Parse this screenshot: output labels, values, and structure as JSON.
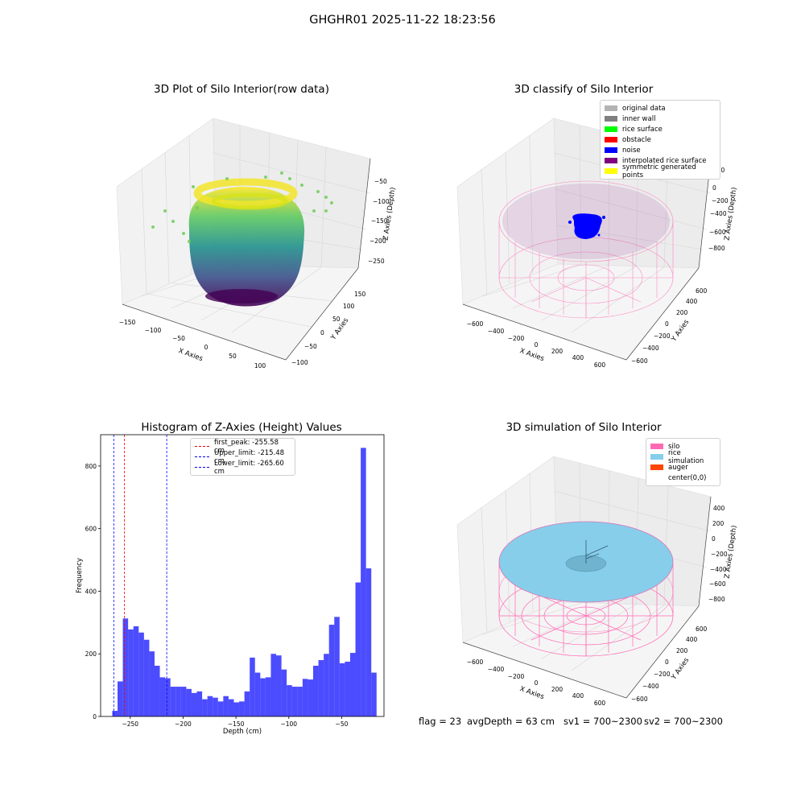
{
  "suptitle": "GHGHR01 2025-11-22 18:23:56",
  "titles": {
    "tl": "3D Plot of Silo Interior(row data)",
    "tr": "3D classify of Silo Interior",
    "bl": "Histogram of Z-Axies (Height) Values",
    "br": "3D simulation of Silo Interior"
  },
  "axes3d": {
    "tl": {
      "xlabel": "X Axies",
      "ylabel": "Y Axies",
      "zlabel": "Z Axies (Depth)",
      "xticks": [
        "−150",
        "−100",
        "−50",
        "0",
        "50",
        "100"
      ],
      "yticks": [
        "−100",
        "−50",
        "0",
        "50",
        "100",
        "150"
      ],
      "zticks": [
        "−50",
        "−100",
        "−150",
        "−200",
        "−250"
      ]
    },
    "tr": {
      "xlabel": "X Axies",
      "ylabel": "Y Axies",
      "zlabel": "Z Axies (Depth)",
      "xticks": [
        "−600",
        "−400",
        "−200",
        "0",
        "200",
        "400",
        "600"
      ],
      "yticks": [
        "−600",
        "−400",
        "−200",
        "0",
        "200",
        "400",
        "600"
      ],
      "zticks": [
        "200",
        "0",
        "−200",
        "−400",
        "−600",
        "−800"
      ]
    },
    "br": {
      "xlabel": "X Axies",
      "ylabel": "Y Axies",
      "zlabel": "Z Axies (Depth)",
      "xticks": [
        "−600",
        "−400",
        "−200",
        "0",
        "200",
        "400",
        "600"
      ],
      "yticks": [
        "−600",
        "−400",
        "−200",
        "0",
        "200",
        "400",
        "600"
      ],
      "zticks": [
        "400",
        "200",
        "0",
        "−200",
        "−400",
        "−600",
        "−800"
      ]
    }
  },
  "legend_tr": [
    {
      "label": "original data",
      "color": "#b3b3b3"
    },
    {
      "label": "inner wall",
      "color": "#808080"
    },
    {
      "label": "rice surface",
      "color": "#00ff00"
    },
    {
      "label": "obstacle",
      "color": "#ff0000"
    },
    {
      "label": "noise",
      "color": "#0000ff"
    },
    {
      "label": "interpolated rice surface",
      "color": "#800080"
    },
    {
      "label": "symmetric generated points",
      "color": "#ffff00"
    }
  ],
  "legend_br": [
    {
      "label": "silo",
      "color": "#ff69b4"
    },
    {
      "label": "rice simulation",
      "color": "#87ceeb"
    },
    {
      "label": "auger",
      "color": "#ff4500"
    },
    {
      "label": "center(0,0)",
      "color": "#ffffff"
    }
  ],
  "legend_hist": [
    {
      "label": "first_peak: -255.58 cm",
      "color": "#ff0000"
    },
    {
      "label": "Upper_limit: -215.48 cm",
      "color": "#0000ff"
    },
    {
      "label": "Lower_limit: -265.60 cm",
      "color": "#0000ff"
    }
  ],
  "status": {
    "flag": "flag = 23",
    "avg": "avgDepth = 63 cm",
    "sv1": "sv1 = 700~2300",
    "sv2": "sv2 = 700~2300"
  },
  "chart_data": [
    {
      "type": "scatter",
      "title": "3D Plot of Silo Interior(row data)",
      "xlabel": "X Axies",
      "ylabel": "Y Axies",
      "zlabel": "Z Axies (Depth)",
      "xlim": [
        -170,
        120
      ],
      "ylim": [
        -110,
        170
      ],
      "zlim": [
        -300,
        -30
      ],
      "colormap": "viridis"
    },
    {
      "type": "scatter",
      "title": "3D classify of Silo Interior",
      "xlabel": "X Axies",
      "ylabel": "Y Axies",
      "zlabel": "Z Axies (Depth)",
      "xlim": [
        -700,
        700
      ],
      "ylim": [
        -700,
        700
      ],
      "zlim": [
        -900,
        300
      ],
      "series": [
        {
          "name": "original data"
        },
        {
          "name": "inner wall"
        },
        {
          "name": "rice surface"
        },
        {
          "name": "obstacle"
        },
        {
          "name": "noise"
        },
        {
          "name": "interpolated rice surface"
        },
        {
          "name": "symmetric generated points"
        }
      ]
    },
    {
      "type": "bar",
      "title": "Histogram of Z-Axies (Height) Values",
      "xlabel": "Depth (cm)",
      "ylabel": "Frequency",
      "xlim": [
        -278,
        -10
      ],
      "ylim": [
        0,
        900
      ],
      "xticks": [
        -250,
        -200,
        -150,
        -100,
        -50
      ],
      "yticks": [
        0,
        200,
        400,
        600,
        800
      ],
      "bin_start": -267,
      "bin_width": 5,
      "values": [
        18,
        112,
        313,
        278,
        288,
        268,
        245,
        208,
        162,
        125,
        122,
        95,
        95,
        95,
        88,
        75,
        80,
        55,
        65,
        60,
        48,
        65,
        55,
        45,
        48,
        80,
        188,
        140,
        122,
        125,
        200,
        195,
        150,
        100,
        95,
        95,
        120,
        118,
        162,
        180,
        200,
        293,
        318,
        170,
        175,
        203,
        428,
        858,
        473,
        140
      ],
      "vlines": [
        {
          "label": "first_peak: -255.58 cm",
          "x": -255.58,
          "color": "#ff0000"
        },
        {
          "label": "Upper_limit: -215.48 cm",
          "x": -215.48,
          "color": "#0000ff"
        },
        {
          "label": "Lower_limit: -265.60 cm",
          "x": -265.6,
          "color": "#0000ff"
        }
      ]
    },
    {
      "type": "scatter",
      "title": "3D simulation of Silo Interior",
      "xlabel": "X Axies",
      "ylabel": "Y Axies",
      "zlabel": "Z Axies (Depth)",
      "xlim": [
        -700,
        700
      ],
      "ylim": [
        -700,
        700
      ],
      "zlim": [
        -900,
        500
      ],
      "series": [
        {
          "name": "silo"
        },
        {
          "name": "rice simulation"
        },
        {
          "name": "auger"
        },
        {
          "name": "center(0,0)"
        }
      ]
    }
  ]
}
